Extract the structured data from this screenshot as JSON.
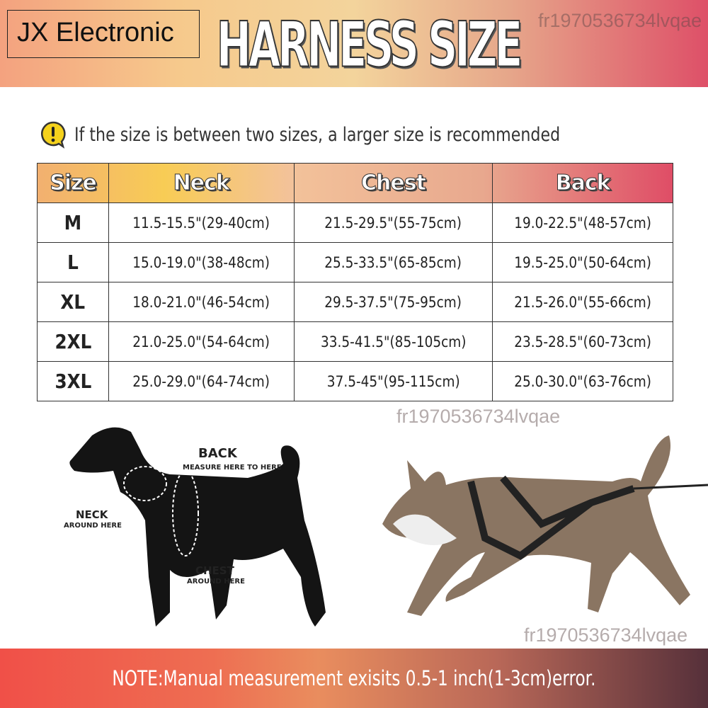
{
  "brand": "JX Electronic",
  "title": "HARNESS SIZE",
  "watermark": "fr1970536734lvqae",
  "tip": {
    "icon": "exclamation-bubble-icon",
    "text": "If the size is between two sizes, a larger size is recommended"
  },
  "table": {
    "headers": [
      "Size",
      "Neck",
      "Chest",
      "Back"
    ],
    "rows": [
      [
        "M",
        "11.5-15.5\"(29-40cm)",
        "21.5-29.5\"(55-75cm)",
        "19.0-22.5\"(48-57cm)"
      ],
      [
        "L",
        "15.0-19.0\"(38-48cm)",
        "25.5-33.5\"(65-85cm)",
        "19.5-25.0\"(50-64cm)"
      ],
      [
        "XL",
        "18.0-21.0\"(46-54cm)",
        "29.5-37.5\"(75-95cm)",
        "21.5-26.0\"(55-66cm)"
      ],
      [
        "2XL",
        "21.0-25.0\"(54-64cm)",
        "33.5-41.5\"(85-105cm)",
        "23.5-28.5\"(60-73cm)"
      ],
      [
        "3XL",
        "25.0-29.0\"(64-74cm)",
        "37.5-45\"(95-115cm)",
        "25.0-30.0\"(63-76cm)"
      ]
    ]
  },
  "diagram": {
    "back": "BACK",
    "back_sub": "MEASURE HERE TO HERE",
    "neck": "NECK",
    "neck_sub": "AROUND HERE",
    "chest": "CHEST",
    "chest_sub": "AROUND HERE"
  },
  "note": "NOTE:Manual measurement exisits 0.5-1 inch(1-3cm)error.",
  "colors": {
    "accent_yellow": "#f8cc55",
    "accent_red": "#df4d66"
  }
}
